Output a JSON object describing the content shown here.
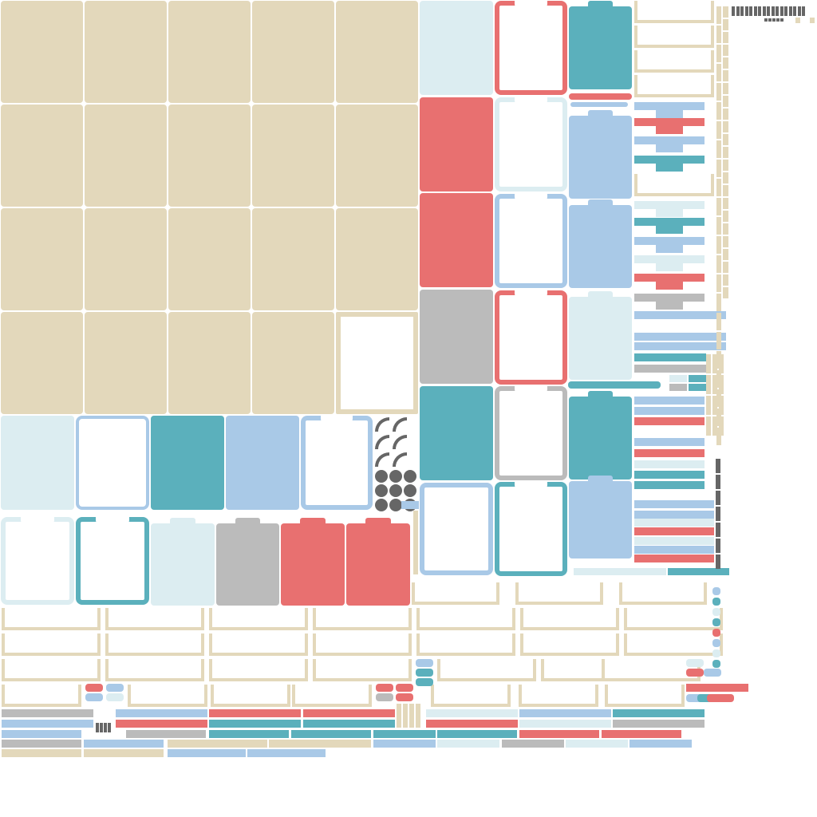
{
  "sheet": {
    "description_visible_text": "",
    "palette": {
      "tan": "#e3d8bb",
      "lightblue": "#dcedf1",
      "teal": "#5bb0bc",
      "red": "#e87070",
      "blue": "#a9c9e7",
      "gray": "#bbbbbb",
      "dark": "#666666",
      "white": "#ffffff"
    },
    "icons": [
      "circle-icon",
      "quarter-ring-icon",
      "checkbox-icon",
      "bar-glyph-icon"
    ]
  }
}
